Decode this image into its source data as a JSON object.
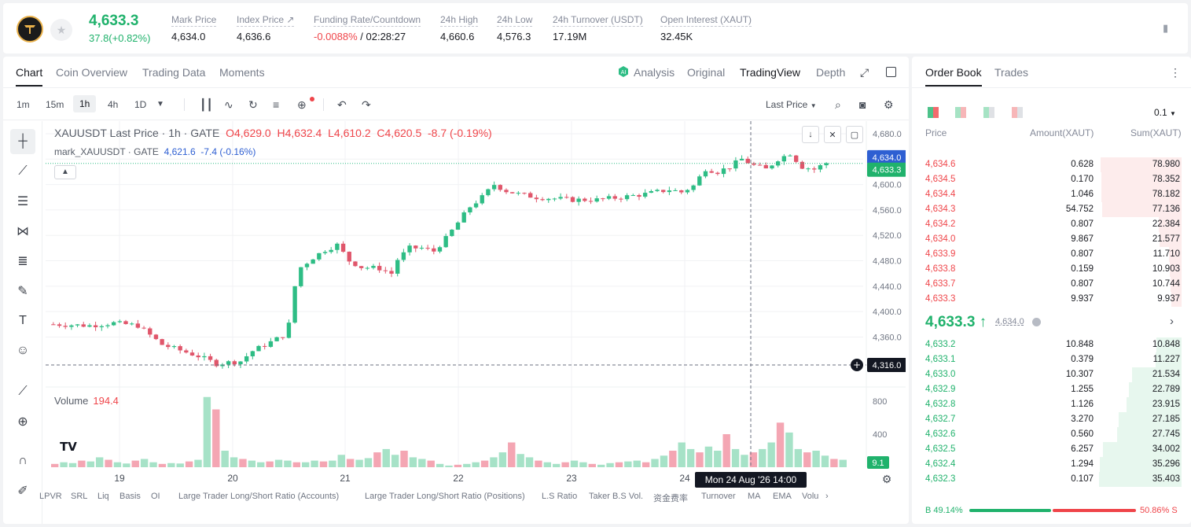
{
  "header": {
    "last_price": "4,633.3",
    "change": "37.8(+0.82%)",
    "stats": [
      {
        "label": "Mark Price",
        "value": "4,634.0"
      },
      {
        "label": "Index Price ↗",
        "value": "4,636.6"
      },
      {
        "label": "Funding Rate/Countdown",
        "value_red": "-0.0088%",
        "value": " / 02:28:27"
      },
      {
        "label": "24h High",
        "value": "4,660.6"
      },
      {
        "label": "24h Low",
        "value": "4,576.3"
      },
      {
        "label": "24h Turnover (USDT)",
        "value": "17.19M"
      },
      {
        "label": "Open Interest (XAUT)",
        "value": "32.45K"
      }
    ]
  },
  "chart_tabs": [
    "Chart",
    "Coin Overview",
    "Trading Data",
    "Moments"
  ],
  "views": [
    "Analysis",
    "Original",
    "TradingView",
    "Depth"
  ],
  "timeframes": [
    "1m",
    "15m",
    "1h",
    "4h",
    "1D"
  ],
  "price_source": "Last Price",
  "legend": {
    "symbol": "XAUUSDT Last Price · 1h · GATE",
    "o": "4,629.0",
    "h": "4,632.4",
    "l": "4,610.2",
    "c": "4,620.5",
    "chg": "-8.7 (-0.19%)",
    "mark_name": "mark_XAUUSDT · GATE",
    "mark_val": "4,621.6",
    "mark_chg": "-7.4 (-0.16%)"
  },
  "volume": {
    "label": "Volume",
    "value": "194.4",
    "last": "9.1"
  },
  "price_labels": {
    "mark": "4,634.0",
    "last": "4,633.3",
    "cursor": "4,316.0"
  },
  "time_cursor": "Mon 24 Aug '26   14:00",
  "indicators": [
    "LPVR",
    "SRL",
    "Liq",
    "Basis",
    "OI",
    "Large Trader Long/Short Ratio (Accounts)",
    "Large Trader Long/Short Ratio (Positions)",
    "L.S Ratio",
    "Taker B.S Vol.",
    "资金费率",
    "Turnover",
    "MA",
    "EMA",
    "Volu"
  ],
  "chart_data": {
    "type": "candlestick",
    "y_ticks": [
      "4,680.0",
      "4,640.0",
      "4,600.0",
      "4,560.0",
      "4,520.0",
      "4,480.0",
      "4,440.0",
      "4,400.0",
      "4,360.0"
    ],
    "ylim": [
      4316,
      4680
    ],
    "x_ticks": [
      "19",
      "20",
      "21",
      "22",
      "23",
      "24"
    ],
    "volume_ticks": [
      "800",
      "400"
    ],
    "close_path": [
      [
        0,
        4380
      ],
      [
        6,
        4378
      ],
      [
        10,
        4382
      ],
      [
        14,
        4378
      ],
      [
        18,
        4348
      ],
      [
        24,
        4330
      ],
      [
        27,
        4318
      ],
      [
        31,
        4322
      ],
      [
        33,
        4338
      ],
      [
        36,
        4352
      ],
      [
        38,
        4362
      ],
      [
        39,
        4380
      ],
      [
        40,
        4440
      ],
      [
        41,
        4470
      ],
      [
        43,
        4485
      ],
      [
        45,
        4497
      ],
      [
        47,
        4505
      ],
      [
        49,
        4480
      ],
      [
        51,
        4470
      ],
      [
        54,
        4468
      ],
      [
        56,
        4460
      ],
      [
        57,
        4482
      ],
      [
        59,
        4500
      ],
      [
        61,
        4500
      ],
      [
        63,
        4495
      ],
      [
        65,
        4515
      ],
      [
        67,
        4540
      ],
      [
        69,
        4565
      ],
      [
        71,
        4580
      ],
      [
        73,
        4600
      ],
      [
        75,
        4590
      ],
      [
        77,
        4585
      ],
      [
        80,
        4580
      ],
      [
        83,
        4578
      ],
      [
        86,
        4576
      ],
      [
        90,
        4576
      ],
      [
        94,
        4580
      ],
      [
        98,
        4585
      ],
      [
        102,
        4592
      ],
      [
        104,
        4588
      ],
      [
        106,
        4598
      ],
      [
        108,
        4625
      ],
      [
        110,
        4620
      ],
      [
        112,
        4628
      ],
      [
        114,
        4640
      ],
      [
        116,
        4630
      ],
      [
        118,
        4624
      ],
      [
        120,
        4640
      ],
      [
        122,
        4649
      ],
      [
        124,
        4628
      ],
      [
        126,
        4624
      ],
      [
        128,
        4634
      ]
    ],
    "volume_series": [
      40,
      60,
      50,
      80,
      70,
      120,
      90,
      60,
      45,
      80,
      100,
      60,
      40,
      50,
      45,
      70,
      90,
      850,
      700,
      200,
      120,
      100,
      80,
      60,
      70,
      90,
      80,
      60,
      60,
      80,
      70,
      80,
      150,
      100,
      90,
      110,
      180,
      220,
      150,
      200,
      120,
      100,
      80,
      40,
      20,
      30,
      40,
      60,
      80,
      120,
      180,
      300,
      160,
      120,
      80,
      60,
      40,
      60,
      80,
      60,
      40,
      30,
      50,
      60,
      70,
      80,
      60,
      100,
      140,
      200,
      300,
      220,
      180,
      250,
      200,
      400,
      220,
      150,
      180,
      220,
      300,
      540,
      420,
      220,
      180,
      200,
      140,
      100,
      90
    ]
  },
  "order_book": {
    "tabs": [
      "Order Book",
      "Trades"
    ],
    "precision": "0.1",
    "headers": [
      "Price",
      "Amount(XAUT)",
      "Sum(XAUT)"
    ],
    "asks": [
      [
        "4,634.6",
        "0.628",
        "78.980",
        0.98
      ],
      [
        "4,634.5",
        "0.170",
        "78.352",
        0.97
      ],
      [
        "4,634.4",
        "1.046",
        "78.182",
        0.97
      ],
      [
        "4,634.3",
        "54.752",
        "77.136",
        0.96
      ],
      [
        "4,634.2",
        "0.807",
        "22.384",
        0.28
      ],
      [
        "4,634.0",
        "9.867",
        "21.577",
        0.27
      ],
      [
        "4,633.9",
        "0.807",
        "11.710",
        0.15
      ],
      [
        "4,633.8",
        "0.159",
        "10.903",
        0.14
      ],
      [
        "4,633.7",
        "0.807",
        "10.744",
        0.13
      ],
      [
        "4,633.3",
        "9.937",
        "9.937",
        0.12
      ]
    ],
    "mid_price": "4,633.3 ↑",
    "mid_mark": "4,634.0",
    "bids": [
      [
        "4,633.2",
        "10.848",
        "10.848",
        0.3
      ],
      [
        "4,633.1",
        "0.379",
        "11.227",
        0.31
      ],
      [
        "4,633.0",
        "10.307",
        "21.534",
        0.6
      ],
      [
        "4,632.9",
        "1.255",
        "22.789",
        0.64
      ],
      [
        "4,632.8",
        "1.126",
        "23.915",
        0.67
      ],
      [
        "4,632.7",
        "3.270",
        "27.185",
        0.76
      ],
      [
        "4,632.6",
        "0.560",
        "27.745",
        0.78
      ],
      [
        "4,632.5",
        "6.257",
        "34.002",
        0.95
      ],
      [
        "4,632.4",
        "1.294",
        "35.296",
        0.99
      ],
      [
        "4,632.3",
        "0.107",
        "35.403",
        1.0
      ]
    ],
    "buy_ratio": "B 49.14%",
    "sell_ratio": "50.86% S",
    "buy_fraction": 0.4914
  }
}
